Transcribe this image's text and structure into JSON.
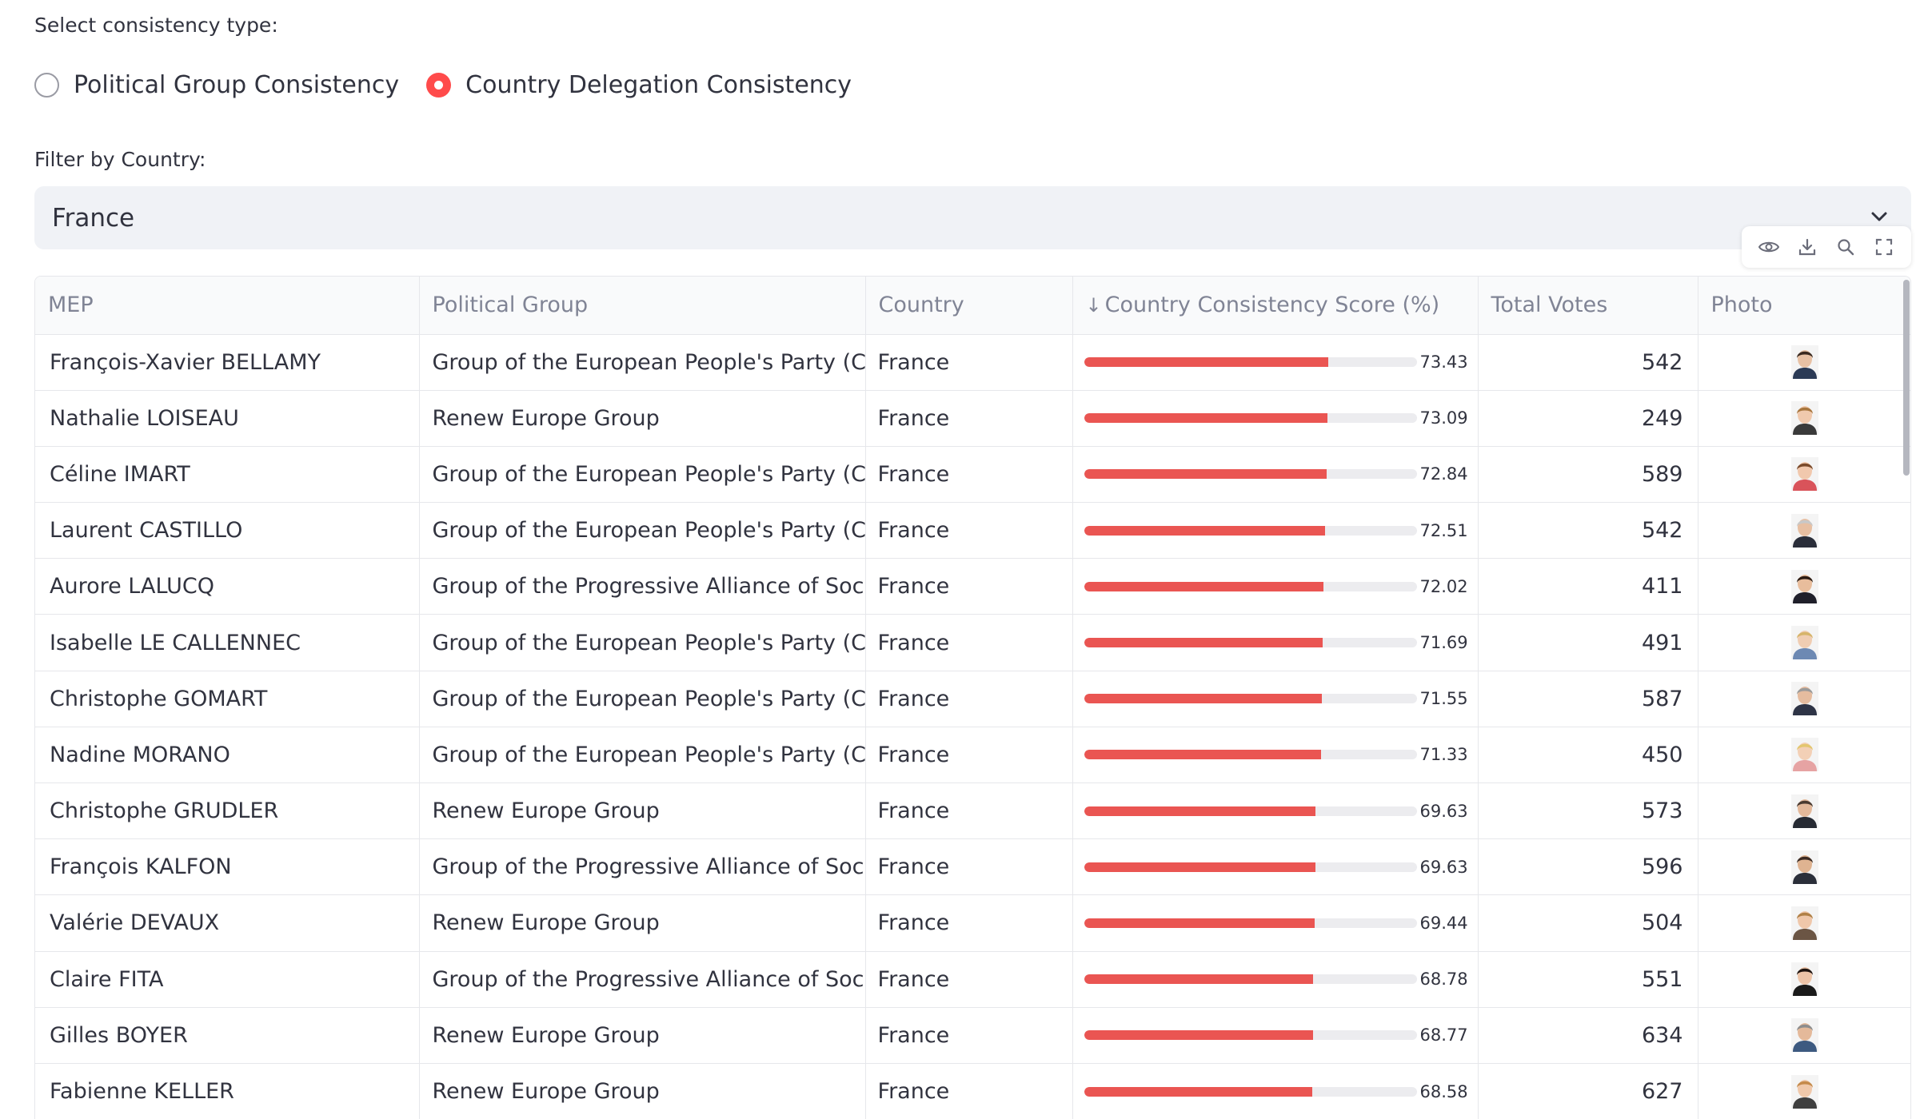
{
  "consistency": {
    "label": "Select consistency type:",
    "options": [
      {
        "label": "Political Group Consistency",
        "selected": false
      },
      {
        "label": "Country Delegation Consistency",
        "selected": true
      }
    ]
  },
  "filter": {
    "label": "Filter by Country:",
    "value": "France"
  },
  "toolbar": {
    "icons": [
      "eye-icon",
      "download-icon",
      "search-icon",
      "fullscreen-icon"
    ]
  },
  "table": {
    "columns": {
      "mep": "MEP",
      "group": "Political Group",
      "country": "Country",
      "score_arrow": "↓",
      "score": "Country Consistency Score (%)",
      "votes": "Total Votes",
      "photo": "Photo"
    },
    "score_max": 100,
    "bar_color": "#ea5552",
    "rows": [
      {
        "mep": "François-Xavier BELLAMY",
        "group": "Group of the European People's Party (Christian Democrats)",
        "country": "France",
        "score": 73.43,
        "score_label": "73.43",
        "votes": "542"
      },
      {
        "mep": "Nathalie LOISEAU",
        "group": "Renew Europe Group",
        "country": "France",
        "score": 73.09,
        "score_label": "73.09",
        "votes": "249"
      },
      {
        "mep": "Céline IMART",
        "group": "Group of the European People's Party (Christian Democrats)",
        "country": "France",
        "score": 72.84,
        "score_label": "72.84",
        "votes": "589"
      },
      {
        "mep": "Laurent CASTILLO",
        "group": "Group of the European People's Party (Christian Democrats)",
        "country": "France",
        "score": 72.51,
        "score_label": "72.51",
        "votes": "542"
      },
      {
        "mep": "Aurore LALUCQ",
        "group": "Group of the Progressive Alliance of Socialists and Democrats in the European Parliament",
        "country": "France",
        "score": 72.02,
        "score_label": "72.02",
        "votes": "411"
      },
      {
        "mep": "Isabelle LE CALLENNEC",
        "group": "Group of the European People's Party (Christian Democrats)",
        "country": "France",
        "score": 71.69,
        "score_label": "71.69",
        "votes": "491"
      },
      {
        "mep": "Christophe GOMART",
        "group": "Group of the European People's Party (Christian Democrats)",
        "country": "France",
        "score": 71.55,
        "score_label": "71.55",
        "votes": "587"
      },
      {
        "mep": "Nadine MORANO",
        "group": "Group of the European People's Party (Christian Democrats)",
        "country": "France",
        "score": 71.33,
        "score_label": "71.33",
        "votes": "450"
      },
      {
        "mep": "Christophe GRUDLER",
        "group": "Renew Europe Group",
        "country": "France",
        "score": 69.63,
        "score_label": "69.63",
        "votes": "573"
      },
      {
        "mep": "François KALFON",
        "group": "Group of the Progressive Alliance of Socialists and Democrats in the European Parliament",
        "country": "France",
        "score": 69.63,
        "score_label": "69.63",
        "votes": "596"
      },
      {
        "mep": "Valérie DEVAUX",
        "group": "Renew Europe Group",
        "country": "France",
        "score": 69.44,
        "score_label": "69.44",
        "votes": "504"
      },
      {
        "mep": "Claire FITA",
        "group": "Group of the Progressive Alliance of Socialists and Democrats in the European Parliament",
        "country": "France",
        "score": 68.78,
        "score_label": "68.78",
        "votes": "551"
      },
      {
        "mep": "Gilles BOYER",
        "group": "Renew Europe Group",
        "country": "France",
        "score": 68.77,
        "score_label": "68.77",
        "votes": "634"
      },
      {
        "mep": "Fabienne KELLER",
        "group": "Renew Europe Group",
        "country": "France",
        "score": 68.58,
        "score_label": "68.58",
        "votes": "627"
      }
    ],
    "photos": [
      {
        "hair": "#3b2a20",
        "skin": "#e8c1a4",
        "shirt": "#2b3a55"
      },
      {
        "hair": "#a8763e",
        "skin": "#f0c9ad",
        "shirt": "#3a3a3a"
      },
      {
        "hair": "#7a4a2a",
        "skin": "#f1c8ad",
        "shirt": "#d9535a"
      },
      {
        "hair": "#c8c8c8",
        "skin": "#e7bfa2",
        "shirt": "#2a2e3a"
      },
      {
        "hair": "#2c1b12",
        "skin": "#e8bd9c",
        "shirt": "#1f1f2a"
      },
      {
        "hair": "#d6b46a",
        "skin": "#f0cdb2",
        "shirt": "#6d89b3"
      },
      {
        "hair": "#9a9a9a",
        "skin": "#e5bc9f",
        "shirt": "#2e3446"
      },
      {
        "hair": "#e3c66f",
        "skin": "#f3d0b6",
        "shirt": "#e6a3a3"
      },
      {
        "hair": "#4a3a30",
        "skin": "#e3b89a",
        "shirt": "#262a33"
      },
      {
        "hair": "#3a2a22",
        "skin": "#dfb391",
        "shirt": "#2b2f3a"
      },
      {
        "hair": "#b08046",
        "skin": "#efc7aa",
        "shirt": "#6b5544"
      },
      {
        "hair": "#1e1410",
        "skin": "#edc4a8",
        "shirt": "#1a1a1a"
      },
      {
        "hair": "#8d8d8d",
        "skin": "#e4b99a",
        "shirt": "#3d5a80"
      },
      {
        "hair": "#c58a4a",
        "skin": "#f0c8aa",
        "shirt": "#3f3f3f"
      }
    ]
  }
}
